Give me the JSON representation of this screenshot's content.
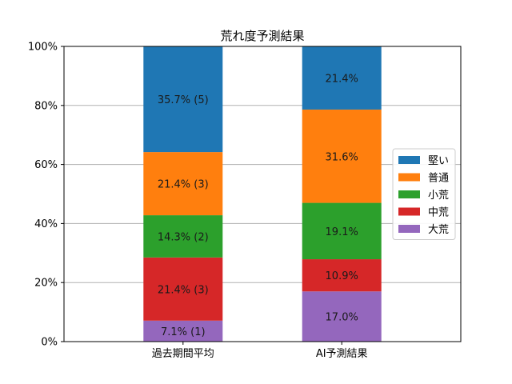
{
  "chart_data": {
    "type": "bar",
    "stacked": true,
    "title": "荒れ度予測結果",
    "xlabel": "",
    "ylabel": "",
    "categories": [
      "過去期間平均",
      "AI予測結果"
    ],
    "ylim": [
      0,
      100
    ],
    "yticks": [
      "0%",
      "20%",
      "40%",
      "60%",
      "80%",
      "100%"
    ],
    "grid": "y",
    "legend_position": "right",
    "series": [
      {
        "name": "大荒",
        "color": "#9467bd",
        "values": [
          7.1,
          17.0
        ],
        "labels": [
          "7.1% (1)",
          "17.0%"
        ]
      },
      {
        "name": "中荒",
        "color": "#d62728",
        "values": [
          21.4,
          10.9
        ],
        "labels": [
          "21.4% (3)",
          "10.9%"
        ]
      },
      {
        "name": "小荒",
        "color": "#2ca02c",
        "values": [
          14.3,
          19.1
        ],
        "labels": [
          "14.3% (2)",
          "19.1%"
        ]
      },
      {
        "name": "普通",
        "color": "#ff7f0e",
        "values": [
          21.4,
          31.6
        ],
        "labels": [
          "21.4% (3)",
          "31.6%"
        ]
      },
      {
        "name": "堅い",
        "color": "#1f77b4",
        "values": [
          35.7,
          21.4
        ],
        "labels": [
          "35.7% (5)",
          "21.4%"
        ]
      }
    ],
    "legend_order": [
      "堅い",
      "普通",
      "小荒",
      "中荒",
      "大荒"
    ]
  }
}
